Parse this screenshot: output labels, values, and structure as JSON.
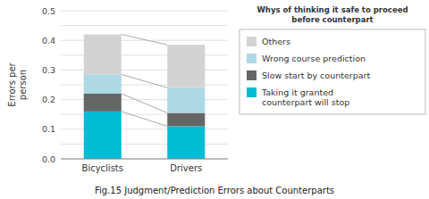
{
  "chart_data": {
    "type": "bar",
    "title": "Fig.15  Judgment/Prediction Errors about Counterparts",
    "y_label": "Errors per\nperson",
    "legend_title": "Whys of thinking it safe to proceed\nbefore counterpart",
    "categories": [
      "Bicyclists",
      "Drivers"
    ],
    "series": [
      {
        "name": "Taking it granted\ncounterpart will stop",
        "color": "#00bcd4",
        "values": [
          0.16,
          0.11
        ]
      },
      {
        "name": "Slow start by counterpart",
        "color": "#666666",
        "values": [
          0.06,
          0.045
        ]
      },
      {
        "name": "Wrong course prediction",
        "color": "#add8e6",
        "values": [
          0.065,
          0.085
        ]
      },
      {
        "name": "Others",
        "color": "#d3d3d3",
        "values": [
          0.135,
          0.145
        ]
      }
    ],
    "stacked": true,
    "ylim": [
      0.0,
      0.5
    ],
    "yticks": [
      {
        "value": 0.0,
        "label": "0.0"
      },
      {
        "value": 0.05,
        "label": null
      },
      0.1,
      {
        "value": 0.15,
        "label": null
      },
      0.2,
      {
        "value": 0.25,
        "label": null
      },
      0.3,
      {
        "value": 0.35,
        "label": null
      },
      0.4,
      {
        "value": 0.45,
        "label": null
      },
      0.5
    ],
    "grid": true,
    "legend": "right"
  }
}
